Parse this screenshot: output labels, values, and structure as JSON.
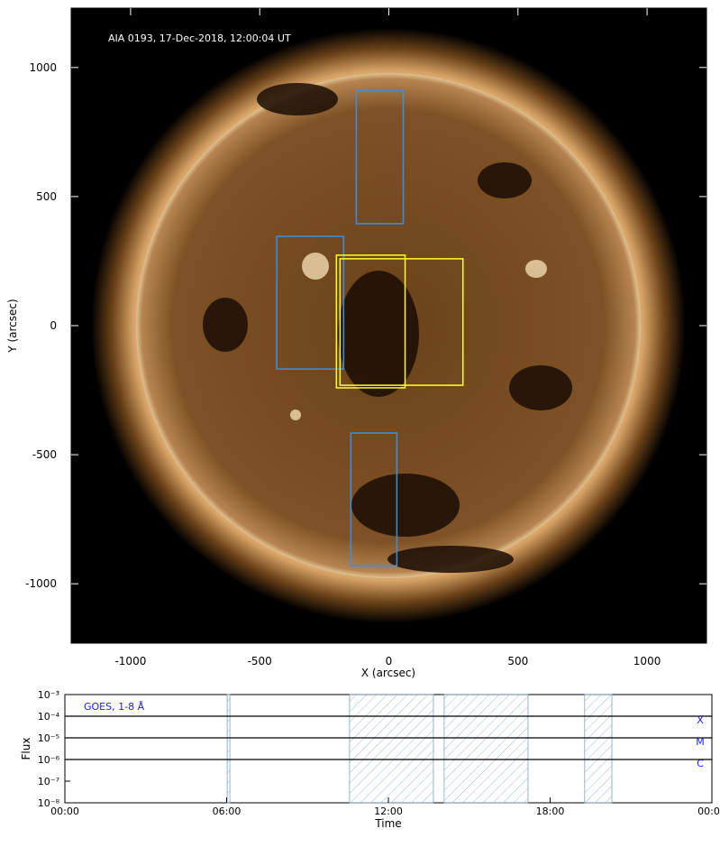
{
  "chart_data": [
    {
      "type": "image",
      "title": "AIA 0193, 17-Dec-2018, 12:00:04 UT",
      "xlabel": "X (arcsec)",
      "ylabel": "Y (arcsec)",
      "xlim": [
        -1230,
        1230
      ],
      "ylim": [
        -1230,
        1230
      ],
      "xticks": [
        -1000,
        -500,
        0,
        500,
        1000
      ],
      "yticks": [
        -1000,
        -500,
        0,
        500,
        1000
      ],
      "regions": [
        {
          "color": "#3a8fe8",
          "x": [
            -126,
            56
          ],
          "y": [
            395,
            909
          ]
        },
        {
          "color": "#3a8fe8",
          "x": [
            -434,
            -175
          ],
          "y": [
            -168,
            346
          ]
        },
        {
          "color": "#3a8fe8",
          "x": [
            -147,
            31
          ],
          "y": [
            -930,
            -416
          ]
        },
        {
          "color": "#ffff33",
          "x": [
            -203,
            63
          ],
          "y": [
            -241,
            273
          ]
        },
        {
          "color": "#ffff33",
          "x": [
            -189,
            287
          ],
          "y": [
            -231,
            259
          ]
        }
      ]
    },
    {
      "type": "span",
      "title": "GOES, 1-8 Å",
      "xlabel": "Time",
      "ylabel": "Flux",
      "xlim": [
        0,
        24
      ],
      "ylim": [
        1e-08,
        0.001
      ],
      "log_y": true,
      "xticks": [
        {
          "value": 0,
          "label": "00:00"
        },
        {
          "value": 6,
          "label": "06:00"
        },
        {
          "value": 12,
          "label": "12:00"
        },
        {
          "value": 18,
          "label": "18:00"
        },
        {
          "value": 24,
          "label": "00:00"
        }
      ],
      "yticks": [
        {
          "value": 1e-08,
          "label": "10⁻⁸"
        },
        {
          "value": 1e-07,
          "label": "10⁻⁷"
        },
        {
          "value": 1e-06,
          "label": "10⁻⁶"
        },
        {
          "value": 1e-05,
          "label": "10⁻⁵"
        },
        {
          "value": 0.0001,
          "label": "10⁻⁴"
        },
        {
          "value": 0.001,
          "label": "10⁻³"
        }
      ],
      "flare_classes": [
        {
          "label": "X",
          "value": 0.0001
        },
        {
          "label": "M",
          "value": 1e-05
        },
        {
          "label": "C",
          "value": 1e-06
        }
      ],
      "intervals": [
        [
          6.02,
          6.12
        ],
        [
          10.56,
          13.67
        ],
        [
          14.07,
          17.18
        ],
        [
          19.28,
          20.29
        ]
      ],
      "interval_color": "#7aa6c8"
    }
  ]
}
